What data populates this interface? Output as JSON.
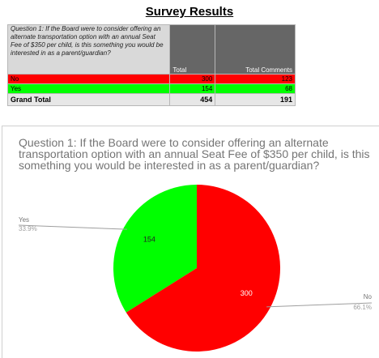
{
  "page_title": "Survey Results",
  "table": {
    "question": "Question 1: If the Board were to consider offering an alternate transportation option with an annual Seat Fee of $350 per child, is this something you would be interested in as a parent/guardian?",
    "headers": {
      "total": "Total",
      "comments": "Total Comments"
    },
    "rows": [
      {
        "label": "No",
        "total": "300",
        "comments": "123",
        "color": "#ff0000"
      },
      {
        "label": "Yes",
        "total": "154",
        "comments": "68",
        "color": "#00ff00"
      }
    ],
    "grand": {
      "label": "Grand Total",
      "total": "454",
      "comments": "191"
    }
  },
  "chart_data": {
    "type": "pie",
    "title": "Question 1: If the Board were to consider offering an alternate transportation option with an annual Seat Fee of $350 per child, is this something you would be interested in as a parent/guardian?",
    "slices": [
      {
        "label": "Yes",
        "value": 154,
        "percent": "33.9%",
        "color": "#00ff00"
      },
      {
        "label": "No",
        "value": 300,
        "percent": "66.1%",
        "color": "#ff0000"
      }
    ]
  }
}
